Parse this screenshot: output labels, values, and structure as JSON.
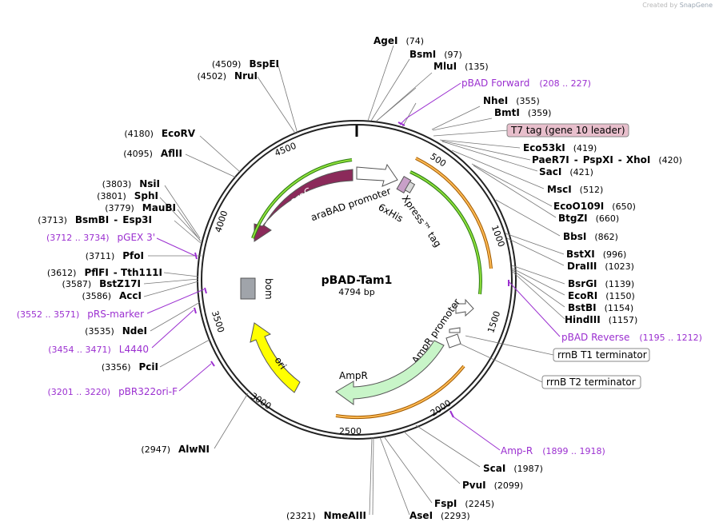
{
  "credit": {
    "prefix": "Created by",
    "brand": "SnapGene"
  },
  "plasmid": {
    "name": "pBAD-Tam1",
    "size_label": "4794 bp",
    "length": 4794
  },
  "ruler": [
    "500",
    "1000",
    "1500",
    "2000",
    "2500",
    "3000",
    "3500",
    "4000",
    "4500"
  ],
  "features": [
    {
      "name": "araC",
      "color": "#8b2a5a"
    },
    {
      "name": "araBAD promoter",
      "color": "#ffffff"
    },
    {
      "name": "6xHis",
      "color": "#c8a0c8"
    },
    {
      "name": "Xpress™ tag",
      "color": "#d8d8d8"
    },
    {
      "name": "AmpR promoter",
      "color": "#ffffff"
    },
    {
      "name": "AmpR",
      "color": "#c8f5c8"
    },
    {
      "name": "ori",
      "color": "#ffff00"
    },
    {
      "name": "bom",
      "color": "#a0a4aa"
    }
  ],
  "enzymes_right": [
    {
      "name": "AgeI",
      "pos": "(74)"
    },
    {
      "name": "BsmI",
      "pos": "(97)"
    },
    {
      "name": "MluI",
      "pos": "(135)"
    },
    {
      "name": "NheI",
      "pos": "(355)"
    },
    {
      "name": "BmtI",
      "pos": "(359)"
    },
    {
      "name": "Eco53kI",
      "pos": "(419)"
    },
    {
      "name": "PaeR7I",
      "pos": ""
    },
    {
      "name": "PspXI",
      "pos": ""
    },
    {
      "name": "XhoI",
      "pos": "(420)"
    },
    {
      "name": "SacI",
      "pos": "(421)"
    },
    {
      "name": "MscI",
      "pos": "(512)"
    },
    {
      "name": "EcoO109I",
      "pos": "(650)"
    },
    {
      "name": "BtgZI",
      "pos": "(660)"
    },
    {
      "name": "BbsI",
      "pos": "(862)"
    },
    {
      "name": "BstXI",
      "pos": "(996)"
    },
    {
      "name": "DraIII",
      "pos": "(1023)"
    },
    {
      "name": "BsrGI",
      "pos": "(1139)"
    },
    {
      "name": "EcoRI",
      "pos": "(1150)"
    },
    {
      "name": "BstBI",
      "pos": "(1154)"
    },
    {
      "name": "HindIII",
      "pos": "(1157)"
    },
    {
      "name": "ScaI",
      "pos": "(1987)"
    },
    {
      "name": "PvuI",
      "pos": "(2099)"
    },
    {
      "name": "FspI",
      "pos": "(2245)"
    },
    {
      "name": "AseI",
      "pos": "(2293)"
    }
  ],
  "enzymes_left": [
    {
      "name": "BspEI",
      "pos": "(4509)"
    },
    {
      "name": "NruI",
      "pos": "(4502)"
    },
    {
      "name": "EcoRV",
      "pos": "(4180)"
    },
    {
      "name": "AflII",
      "pos": "(4095)"
    },
    {
      "name": "NsiI",
      "pos": "(3803)"
    },
    {
      "name": "SphI",
      "pos": "(3801)"
    },
    {
      "name": "MauBI",
      "pos": "(3779)"
    },
    {
      "name": "BsmBI",
      "pos": "(3713)"
    },
    {
      "name": "Esp3I",
      "pos": ""
    },
    {
      "name": "PfoI",
      "pos": "(3711)"
    },
    {
      "name": "PflFI",
      "pos": "(3612)"
    },
    {
      "name": "Tth111I",
      "pos": ""
    },
    {
      "name": "BstZ17I",
      "pos": "(3587)"
    },
    {
      "name": "AccI",
      "pos": "(3586)"
    },
    {
      "name": "NdeI",
      "pos": "(3535)"
    },
    {
      "name": "PciI",
      "pos": "(3356)"
    },
    {
      "name": "AlwNI",
      "pos": "(2947)"
    },
    {
      "name": "NmeAIII",
      "pos": "(2321)"
    }
  ],
  "primers": [
    {
      "name": "pBAD Forward",
      "range": "(208 .. 227)"
    },
    {
      "name": "pBAD Reverse",
      "range": "(1195 .. 1212)"
    },
    {
      "name": "Amp-R",
      "range": "(1899 .. 1918)"
    },
    {
      "name": "pGEX 3'",
      "range": "(3712 .. 3734)"
    },
    {
      "name": "pRS-marker",
      "range": "(3552 .. 3571)"
    },
    {
      "name": "L4440",
      "range": "(3454 .. 3471)"
    },
    {
      "name": "pBR322ori-F",
      "range": "(3201 .. 3220)"
    }
  ],
  "boxed_features": [
    {
      "name": "T7 tag (gene 10 leader)",
      "fill": "#e8bfcc"
    },
    {
      "name": "rrnB T1 terminator",
      "fill": "#ffffff"
    },
    {
      "name": "rrnB T2 terminator",
      "fill": "#ffffff"
    }
  ],
  "colors": {
    "primer": "#9b2fd0",
    "green_arrow": "#5cc21c",
    "orange_arrow": "#e08a1a"
  }
}
